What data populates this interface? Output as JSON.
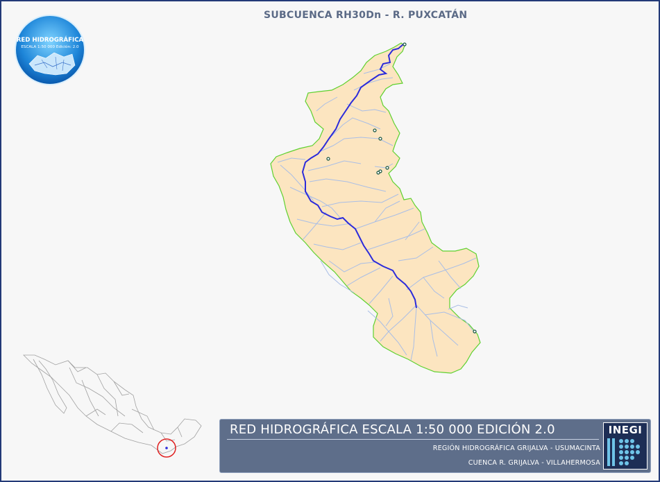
{
  "map": {
    "title": "SUBCUENCA RH30Dn - R. PUXCATÁN",
    "colors": {
      "basin_fill": "#fce5c0",
      "basin_outline": "#5ed12f",
      "main_river": "#2b2bdb",
      "tributaries": "#a9bee6",
      "locator_circle": "#e02020",
      "frame_border": "#233a78"
    }
  },
  "logo": {
    "main_text": "RED HIDROGRÁFICA",
    "sub_text": "ESCALA 1:50 000  Edición: 2.0",
    "icon": "hydro-network-globe-icon"
  },
  "banner": {
    "title": "RED HIDROGRÁFICA ESCALA 1:50 000 EDICIÓN 2.0",
    "region": "REGIÓN HIDROGRÁFICA GRIJALVA - USUMACINTA",
    "cuenca": "CUENCA R. GRIJALVA - VILLAHERMOSA",
    "brand": "INEGI"
  }
}
